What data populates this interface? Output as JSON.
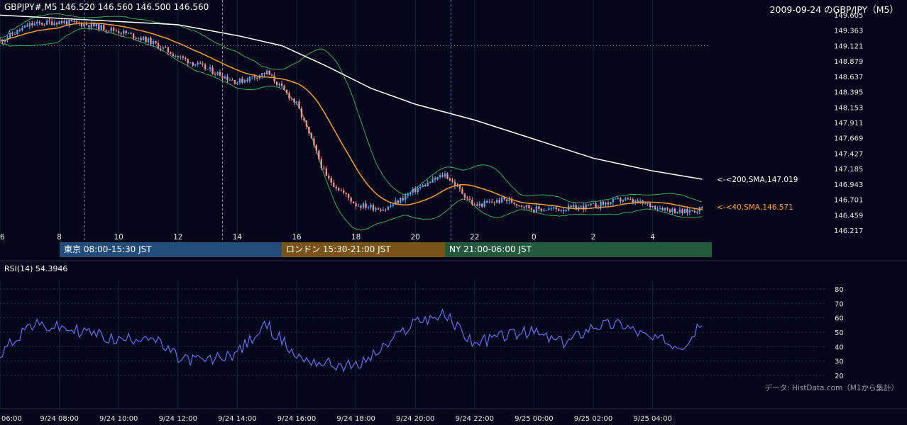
{
  "header": {
    "ohlc_text": "GBPJPY#,M5 146.520 146.560 146.500 146.560",
    "chart_title": "2009-09-24 のGBP/JPY（M5）"
  },
  "sessions": [
    {
      "label": "東京 08:00-15:30 JST",
      "color": "#234e7c"
    },
    {
      "label": "ロンドン 15:30-21:00 JST",
      "color": "#7a5416"
    },
    {
      "label": "NY 21:00-06:00 JST",
      "color": "#245a3c"
    }
  ],
  "indicators": {
    "sma200_label": "<-<200,SMA,147.019",
    "sma40_label": "<-<40,SMA,146.571",
    "rsi_label": "RSI(14) 54.3946"
  },
  "credit": "データ: HistData.com（M1から集計）",
  "colors": {
    "background": "#04071a",
    "up_candle": "#4da6ff",
    "down_candle": "#f09090",
    "sma200": "#ffffff",
    "sma40": "#f5a030",
    "bollinger": "#3aa860",
    "rsi": "#6a6cf0"
  },
  "chart_data": [
    {
      "type": "line",
      "name": "price",
      "title": "2009-09-24 のGBP/JPY（M5）",
      "x_tick_labels": [
        "6",
        "8",
        "10",
        "12",
        "14",
        "16",
        "18",
        "20",
        "22",
        "0",
        "2",
        "4"
      ],
      "y_tick_labels": [
        "149.605",
        "149.363",
        "149.121",
        "148.879",
        "148.637",
        "148.395",
        "148.153",
        "147.911",
        "147.669",
        "147.427",
        "147.185",
        "146.943",
        "146.701",
        "146.459",
        "146.217"
      ],
      "ylim": [
        146.217,
        149.605
      ],
      "price_line": 149.121,
      "series": [
        {
          "name": "SMA 200",
          "end_value": 147.019
        },
        {
          "name": "SMA 40",
          "end_value": 146.571
        }
      ],
      "approx_close_path": [
        {
          "x": "06:00",
          "y": 149.2
        },
        {
          "x": "07:00",
          "y": 149.45
        },
        {
          "x": "08:00",
          "y": 149.5
        },
        {
          "x": "09:00",
          "y": 149.45
        },
        {
          "x": "10:00",
          "y": 149.35
        },
        {
          "x": "11:00",
          "y": 149.2
        },
        {
          "x": "12:00",
          "y": 148.95
        },
        {
          "x": "13:00",
          "y": 148.75
        },
        {
          "x": "14:00",
          "y": 148.55
        },
        {
          "x": "15:00",
          "y": 148.7
        },
        {
          "x": "16:00",
          "y": 148.2
        },
        {
          "x": "17:00",
          "y": 147.05
        },
        {
          "x": "18:00",
          "y": 146.62
        },
        {
          "x": "19:00",
          "y": 146.55
        },
        {
          "x": "20:00",
          "y": 146.85
        },
        {
          "x": "21:00",
          "y": 147.1
        },
        {
          "x": "22:00",
          "y": 146.6
        },
        {
          "x": "23:00",
          "y": 146.7
        },
        {
          "x": "00:00",
          "y": 146.55
        },
        {
          "x": "01:00",
          "y": 146.55
        },
        {
          "x": "02:00",
          "y": 146.6
        },
        {
          "x": "03:00",
          "y": 146.7
        },
        {
          "x": "04:00",
          "y": 146.6
        },
        {
          "x": "05:00",
          "y": 146.5
        },
        {
          "x": "05:40",
          "y": 146.56
        }
      ]
    },
    {
      "type": "line",
      "name": "RSI(14)",
      "ylim": [
        20,
        80
      ],
      "y_tick_labels": [
        "80",
        "70",
        "60",
        "50",
        "40",
        "30",
        "20"
      ],
      "x_tick_labels": [
        "06:00",
        "9/24 08:00",
        "9/24 10:00",
        "9/24 12:00",
        "9/24 14:00",
        "9/24 16:00",
        "9/24 18:00",
        "9/24 20:00",
        "9/24 22:00",
        "9/25 00:00",
        "9/25 02:00",
        "9/25 04:00"
      ],
      "last_value": 54.3946,
      "approx_values": [
        {
          "x": "06:00",
          "y": 36
        },
        {
          "x": "07:00",
          "y": 55
        },
        {
          "x": "08:00",
          "y": 53
        },
        {
          "x": "09:00",
          "y": 50
        },
        {
          "x": "10:00",
          "y": 44
        },
        {
          "x": "11:00",
          "y": 48
        },
        {
          "x": "12:00",
          "y": 32
        },
        {
          "x": "13:00",
          "y": 30
        },
        {
          "x": "14:00",
          "y": 36
        },
        {
          "x": "15:00",
          "y": 55
        },
        {
          "x": "16:00",
          "y": 33
        },
        {
          "x": "17:00",
          "y": 28
        },
        {
          "x": "18:00",
          "y": 26
        },
        {
          "x": "19:00",
          "y": 40
        },
        {
          "x": "20:00",
          "y": 58
        },
        {
          "x": "21:00",
          "y": 62
        },
        {
          "x": "22:00",
          "y": 42
        },
        {
          "x": "23:00",
          "y": 48
        },
        {
          "x": "00:00",
          "y": 50
        },
        {
          "x": "01:00",
          "y": 42
        },
        {
          "x": "02:00",
          "y": 55
        },
        {
          "x": "03:00",
          "y": 56
        },
        {
          "x": "04:00",
          "y": 45
        },
        {
          "x": "05:00",
          "y": 42
        },
        {
          "x": "05:40",
          "y": 54.3946
        }
      ]
    }
  ]
}
